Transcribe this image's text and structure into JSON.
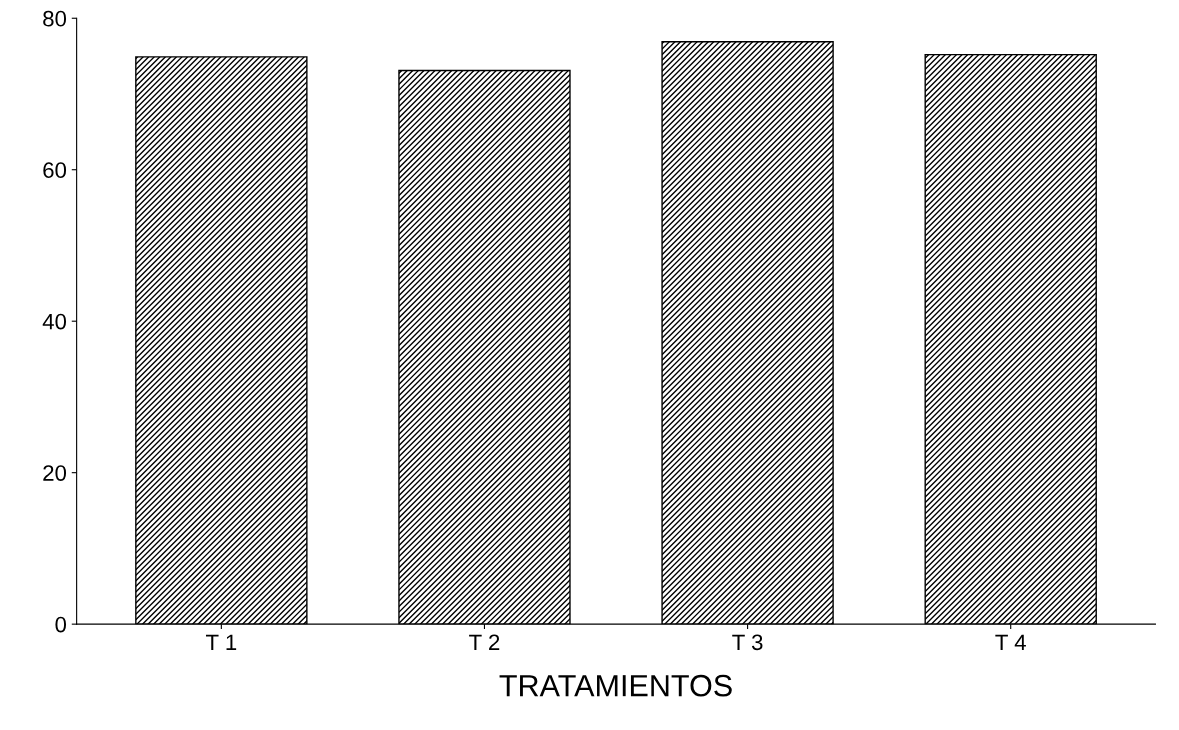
{
  "chart_data": {
    "type": "bar",
    "xlabel": "TRATAMIENTOS",
    "categories": [
      "T 1",
      "T 2",
      "T 3",
      "T 4"
    ],
    "values": [
      74.9,
      73.1,
      76.9,
      75.2
    ],
    "color": "#000000",
    "ylim": [
      0,
      80
    ],
    "yticks": [
      0,
      20,
      40,
      60,
      80
    ],
    "grid": false
  }
}
